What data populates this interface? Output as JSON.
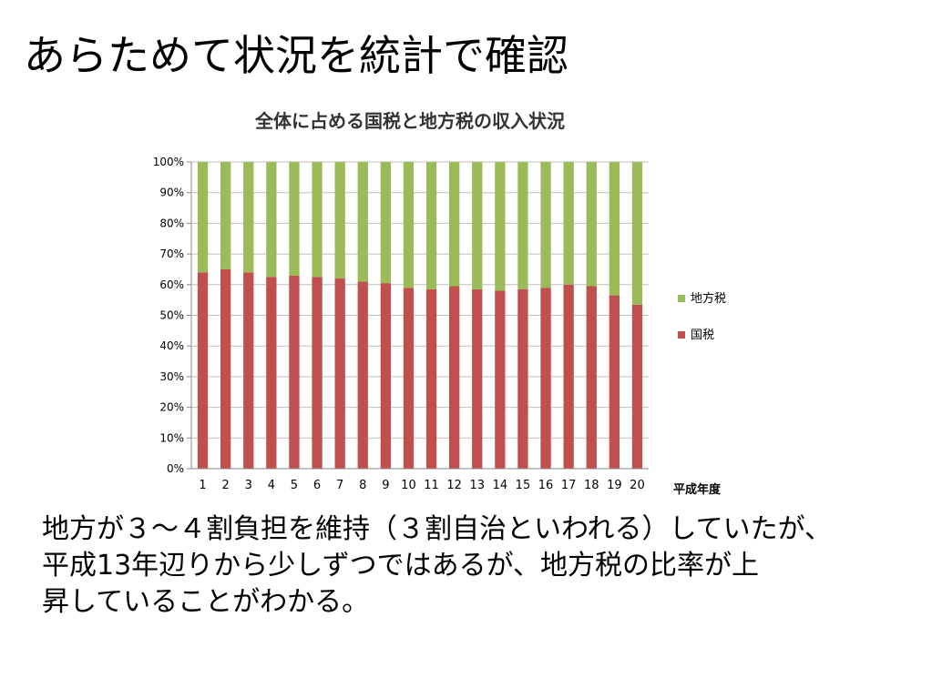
{
  "slide": {
    "title": "あらためて状況を統計で確認",
    "body_lines": [
      "地方が３～４割負担を維持（３割自治といわれる）していたが、",
      "平成13年辺りから少しずつではあるが、地方税の比率が上",
      "昇していることがわかる。"
    ]
  },
  "chart_data": {
    "type": "bar",
    "stacked": "percent",
    "title": "全体に占める国税と地方税の収入状況",
    "xlabel": "平成年度",
    "ylabel": "",
    "ylim": [
      0,
      100
    ],
    "yticks": [
      "0%",
      "10%",
      "20%",
      "30%",
      "40%",
      "50%",
      "60%",
      "70%",
      "80%",
      "90%",
      "100%"
    ],
    "categories": [
      "1",
      "2",
      "3",
      "4",
      "5",
      "6",
      "7",
      "8",
      "9",
      "10",
      "11",
      "12",
      "13",
      "14",
      "15",
      "16",
      "17",
      "18",
      "19",
      "20"
    ],
    "grid": true,
    "legend_position": "right",
    "series": [
      {
        "name": "国税",
        "color": "#c0504d",
        "values": [
          64,
          65,
          64,
          62.5,
          63,
          62.5,
          62,
          61,
          60.5,
          59,
          58.5,
          59.5,
          58.5,
          58,
          58.5,
          59,
          60,
          59.5,
          56.5,
          53.5
        ]
      },
      {
        "name": "地方税",
        "color": "#9bbb59",
        "values": [
          36,
          35,
          36,
          37.5,
          37,
          37.5,
          38,
          39,
          39.5,
          41,
          41.5,
          40.5,
          41.5,
          42,
          41.5,
          41,
          40,
          40.5,
          43.5,
          46.5
        ]
      }
    ],
    "legend_order": [
      "地方税",
      "国税"
    ]
  }
}
